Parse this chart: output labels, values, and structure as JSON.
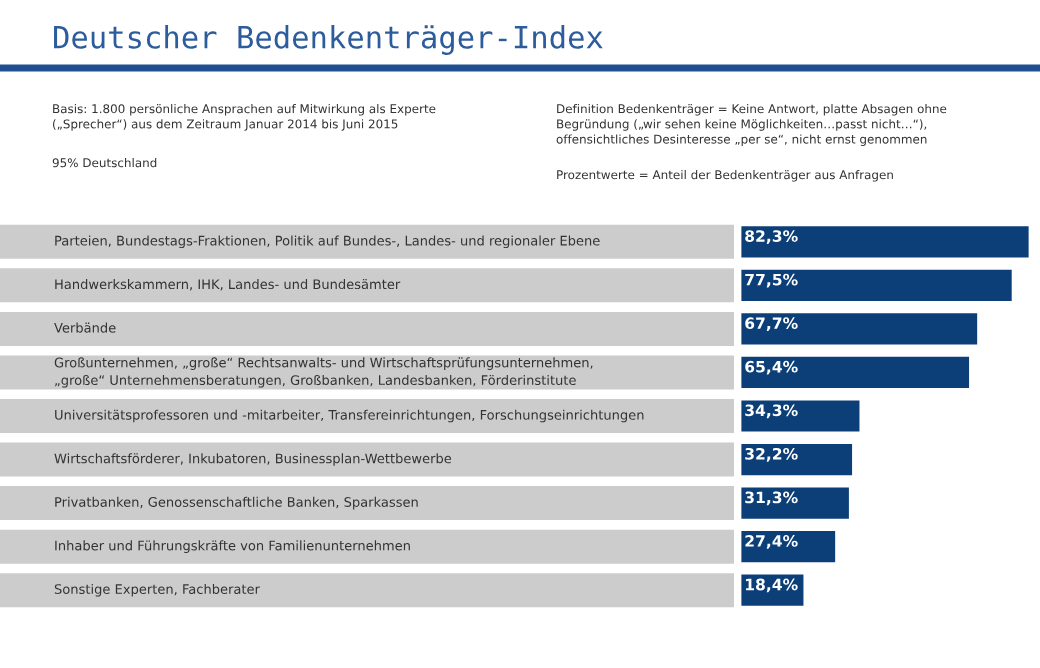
{
  "chart_data": {
    "type": "bar",
    "orientation": "horizontal",
    "title": "Deutscher Bedenkenträger-Index",
    "annotations": [
      "Basis: 1.800 persönliche Ansprachen auf Mitwirkung als Experte\n(„Sprecher“) aus dem Zeitraum Januar 2014 bis Juni 2015",
      "95% Deutschland",
      "Definition Bedenkenträger = Keine Antwort, platte Absagen ohne\nBegründung („wir sehen keine Möglichkeiten…passt nicht…“),\noffensichtliches Desinteresse „per se“, nicht ernst genommen",
      "Prozentwerte = Anteil der Bedenkenträger aus Anfragen"
    ],
    "categories": [
      "Parteien, Bundestags-Fraktionen, Politik auf Bundes-, Landes- und regionaler Ebene",
      "Handwerkskammern, IHK, Landes- und Bundesämter",
      "Verbände",
      "Großunternehmen, „große“ Rechtsanwalts- und Wirtschaftsprüfungsunternehmen,\n„große“ Unternehmensberatungen, Großbanken, Landesbanken, Förderinstitute",
      "Universitätsprofessoren und -mitarbeiter, Transfereinrichtungen, Forschungseinrichtungen",
      "Wirtschaftsförderer, Inkubatoren, Businessplan-Wettbewerbe",
      "Privatbanken, Genossenschaftliche Banken, Sparkassen",
      "Inhaber und Führungskräfte von Familienunternehmen",
      "Sonstige Experten, Fachberater"
    ],
    "values": [
      82.3,
      77.5,
      67.7,
      65.4,
      34.3,
      32.2,
      31.3,
      27.4,
      18.4
    ],
    "value_labels": [
      "82,3%",
      "77,5%",
      "67,7%",
      "65,4%",
      "34,3%",
      "32,2%",
      "31,3%",
      "27,4%",
      "18,4%"
    ],
    "color": "#0c3f78",
    "xlim": [
      0,
      84
    ]
  }
}
